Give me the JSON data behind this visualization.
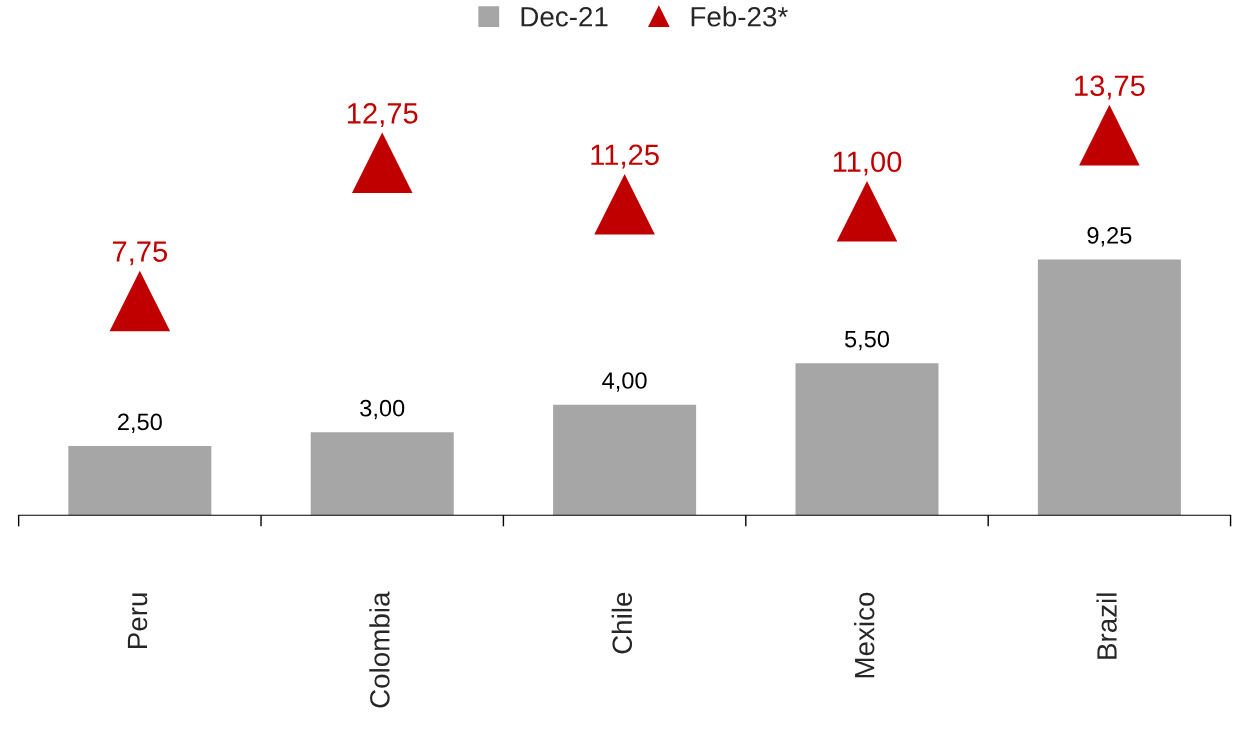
{
  "chart_data": {
    "type": "bar",
    "categories": [
      "Peru",
      "Colombia",
      "Chile",
      "Mexico",
      "Brazil"
    ],
    "series": [
      {
        "name": "Dec-21",
        "color": "#a6a6a6",
        "values": [
          2.5,
          3.0,
          4.0,
          5.5,
          9.25
        ],
        "value_labels": [
          "2,50",
          "3,00",
          "4,00",
          "5,50",
          "9,25"
        ]
      },
      {
        "name": "Feb-23*",
        "type": "scatter",
        "marker": "triangle",
        "color": "#c00000",
        "values": [
          7.75,
          12.75,
          11.25,
          11.0,
          13.75
        ],
        "value_labels": [
          "7,75",
          "12,75",
          "11,25",
          "11,00",
          "13,75"
        ]
      }
    ],
    "legend": "top",
    "grid": false,
    "tick_labels": "x"
  }
}
